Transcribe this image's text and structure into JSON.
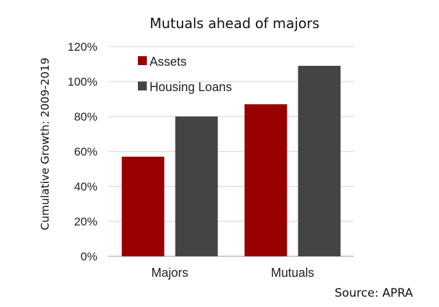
{
  "source_note": "Source: APRA",
  "chart_data": {
    "type": "bar",
    "title": "Mutuals ahead of majors",
    "ylabel": "Cumulative Growth: 2009-2019",
    "xlabel": "",
    "categories": [
      "Majors",
      "Mutuals"
    ],
    "series": [
      {
        "name": "Assets",
        "color": "#990000",
        "values": [
          0.57,
          0.87
        ]
      },
      {
        "name": "Housing Loans",
        "color": "#444444",
        "values": [
          0.8,
          1.09
        ]
      }
    ],
    "ylim": [
      0,
      1.2
    ],
    "yticks": [
      0,
      0.2,
      0.4,
      0.6,
      0.8,
      1.0,
      1.2
    ],
    "ytick_labels": [
      "0%",
      "20%",
      "40%",
      "60%",
      "80%",
      "100%",
      "120%"
    ],
    "grid": true,
    "legend_position": "top-left"
  }
}
